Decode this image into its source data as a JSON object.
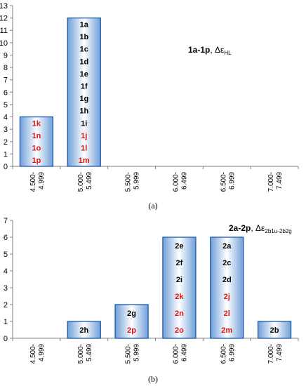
{
  "chart_data": [
    {
      "type": "bar",
      "panel_caption": "(a)",
      "annotation": {
        "bold": "1a-1p",
        "sep": ", ",
        "symbol": "Δε",
        "sub": "HL"
      },
      "categories": [
        "4.500-\n4.999",
        "5.000-\n5.499",
        "5.500-\n5.999",
        "6.000-\n6.499",
        "6.500-\n6.999",
        "7.000-\n7.499"
      ],
      "values": [
        4,
        12,
        0,
        0,
        0,
        0
      ],
      "bar_labels": [
        [
          {
            "t": "1k",
            "c": "#e01010"
          },
          {
            "t": "1n",
            "c": "#e01010"
          },
          {
            "t": "1o",
            "c": "#e01010"
          },
          {
            "t": "1p",
            "c": "#e01010"
          }
        ],
        [
          {
            "t": "1a",
            "c": "#000000"
          },
          {
            "t": "1b",
            "c": "#000000"
          },
          {
            "t": "1c",
            "c": "#000000"
          },
          {
            "t": "1d",
            "c": "#000000"
          },
          {
            "t": "1e",
            "c": "#000000"
          },
          {
            "t": "1f",
            "c": "#000000"
          },
          {
            "t": "1g",
            "c": "#000000"
          },
          {
            "t": "1h",
            "c": "#000000"
          },
          {
            "t": "1i",
            "c": "#000000"
          },
          {
            "t": "1j",
            "c": "#e01010"
          },
          {
            "t": "1l",
            "c": "#e01010"
          },
          {
            "t": "1m",
            "c": "#e01010"
          }
        ],
        [],
        [],
        [],
        []
      ],
      "ylim": [
        0,
        13
      ],
      "yticks": [
        0,
        1,
        2,
        3,
        4,
        5,
        6,
        7,
        8,
        9,
        10,
        11,
        12,
        13
      ],
      "grid": false
    },
    {
      "type": "bar",
      "panel_caption": "(b)",
      "annotation": {
        "bold": "2a-2p",
        "sep": ", ",
        "symbol": "Δε",
        "sub": "2b1u-2b2g"
      },
      "categories": [
        "4.500-\n4.999",
        "5.000-\n5.499",
        "5.500-\n5.999",
        "6.000-\n6.499",
        "6.500-\n6.999",
        "7.000-\n7.499"
      ],
      "values": [
        0,
        1,
        2,
        6,
        6,
        1
      ],
      "bar_labels": [
        [],
        [
          {
            "t": "2h",
            "c": "#000000"
          }
        ],
        [
          {
            "t": "2g",
            "c": "#000000"
          },
          {
            "t": "2p",
            "c": "#e01010"
          }
        ],
        [
          {
            "t": "2e",
            "c": "#000000"
          },
          {
            "t": "2f",
            "c": "#000000"
          },
          {
            "t": "2i",
            "c": "#000000"
          },
          {
            "t": "2k",
            "c": "#e01010"
          },
          {
            "t": "2n",
            "c": "#e01010"
          },
          {
            "t": "2o",
            "c": "#e01010"
          }
        ],
        [
          {
            "t": "2a",
            "c": "#000000"
          },
          {
            "t": "2c",
            "c": "#000000"
          },
          {
            "t": "2d",
            "c": "#000000"
          },
          {
            "t": "2j",
            "c": "#e01010"
          },
          {
            "t": "2l",
            "c": "#e01010"
          },
          {
            "t": "2m",
            "c": "#e01010"
          }
        ],
        [
          {
            "t": "2b",
            "c": "#000000"
          }
        ]
      ],
      "ylim": [
        0,
        7
      ],
      "yticks": [
        0,
        1,
        2,
        3,
        4,
        5,
        6,
        7
      ],
      "grid": false
    }
  ],
  "colors": {
    "bar_edge": "#1f5aa8",
    "bar_light": "#ffffff",
    "bar_dark": "#6f9fd8",
    "axis": "#808080"
  }
}
